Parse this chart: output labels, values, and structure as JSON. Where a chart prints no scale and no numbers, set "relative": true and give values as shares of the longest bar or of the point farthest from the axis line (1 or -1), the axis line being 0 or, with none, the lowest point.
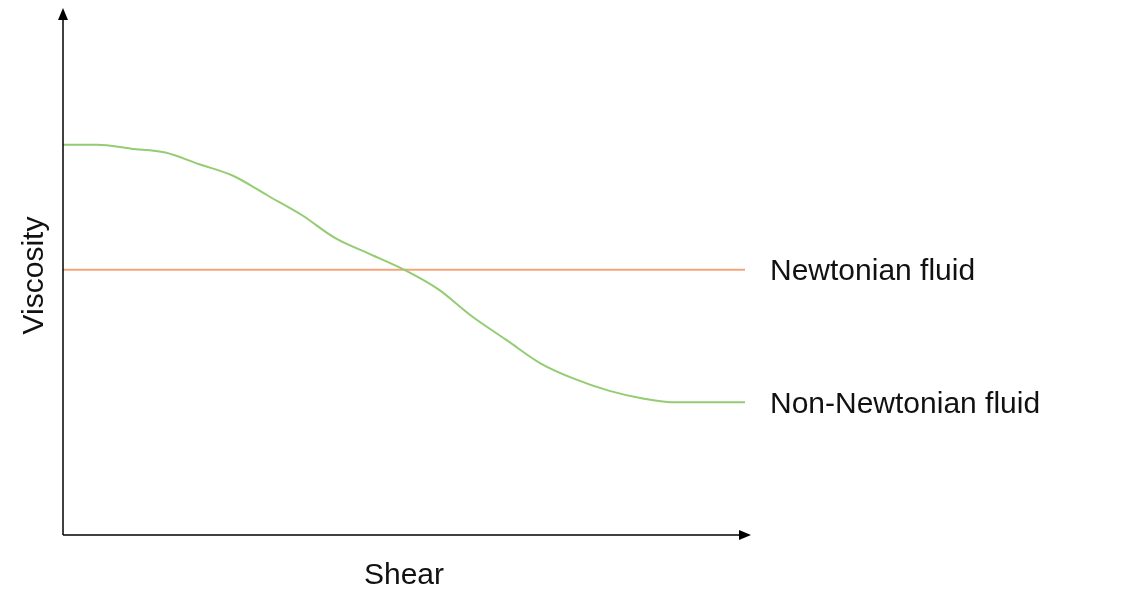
{
  "chart_data": {
    "type": "line",
    "xlabel": "Shear",
    "ylabel": "Viscosity",
    "relative": true,
    "grid": false,
    "legend": false,
    "marker": "none",
    "line_style": "solid",
    "categories": [
      null,
      null,
      null,
      null,
      null,
      null,
      null,
      null,
      null,
      null,
      null,
      null,
      null,
      null,
      null,
      null,
      null,
      null,
      null,
      null,
      null
    ],
    "series": [
      {
        "name": "Newtonian fluid",
        "color": "#f4a57a",
        "values": [
          0.68,
          0.68,
          0.68,
          0.68,
          0.68,
          0.68,
          0.68,
          0.68,
          0.68,
          0.68,
          0.68,
          0.68,
          0.68,
          0.68,
          0.68,
          0.68,
          0.68,
          0.68,
          0.68,
          0.68,
          0.68
        ]
      },
      {
        "name": "Non-Newtonian fluid",
        "color": "#93cc72",
        "values": [
          1,
          1,
          0.99,
          0.98,
          0.95,
          0.92,
          0.87,
          0.82,
          0.76,
          0.72,
          0.68,
          0.63,
          0.56,
          0.5,
          0.44,
          0.4,
          0.37,
          0.35,
          0.34,
          0.34,
          0.34
        ]
      }
    ]
  }
}
